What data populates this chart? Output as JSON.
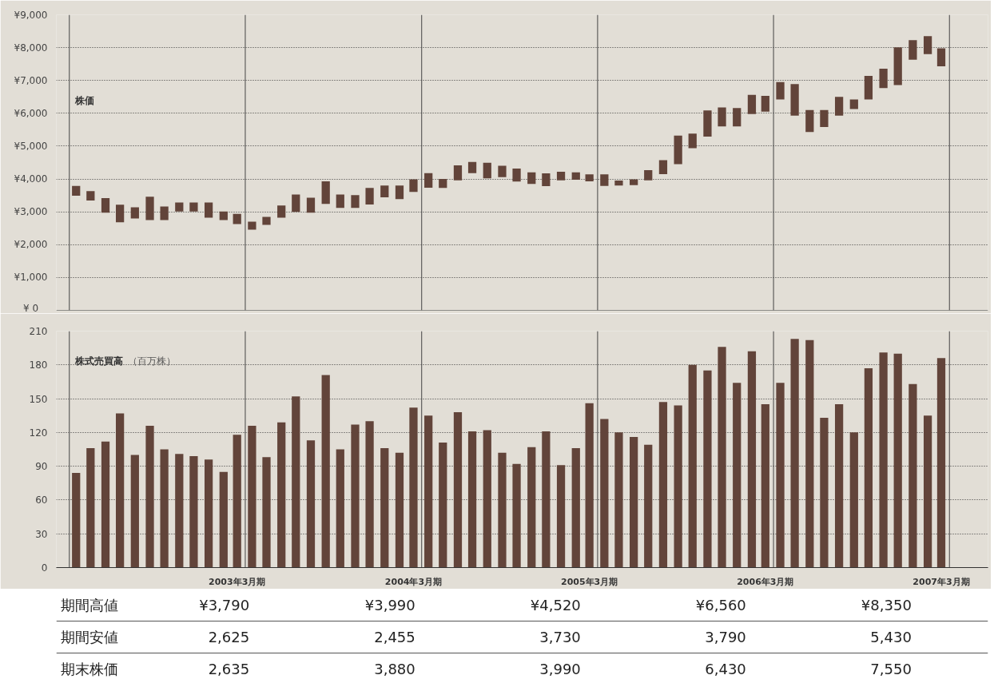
{
  "chart_data": [
    {
      "type": "bar",
      "title": "株価",
      "x": [
        "2002-04-15",
        "2002-05-15",
        "2002-06-15",
        "2002-07-15",
        "2002-08-15",
        "2002-09-15",
        "2002-10-15",
        "2002-11-15",
        "2002-12-15",
        "2003-01-15",
        "2003-02-15",
        "2003-03-15",
        "2003-04-15",
        "2003-05-15",
        "2003-06-15",
        "2003-07-15",
        "2003-08-15",
        "2003-09-15",
        "2003-10-15",
        "2003-11-15",
        "2003-12-15",
        "2004-01-15",
        "2004-02-15",
        "2004-03-15",
        "2004-04-15",
        "2004-05-15",
        "2004-06-15",
        "2004-07-15",
        "2004-08-15",
        "2004-09-15",
        "2004-10-15",
        "2004-11-15",
        "2004-12-15",
        "2005-01-15",
        "2005-02-15",
        "2005-03-15",
        "2005-04-15",
        "2005-05-15",
        "2005-06-15",
        "2005-07-15",
        "2005-08-15",
        "2005-09-15",
        "2005-10-15",
        "2005-11-15",
        "2005-12-15",
        "2006-01-15",
        "2006-02-15",
        "2006-03-15",
        "2006-04-15",
        "2006-05-15",
        "2006-06-15",
        "2006-07-15",
        "2006-08-15",
        "2006-09-15",
        "2006-10-15",
        "2006-11-15",
        "2006-12-15",
        "2007-01-15",
        "2007-02-15",
        "2007-03-15"
      ],
      "base": [
        3490,
        3345,
        2975,
        2680,
        2800,
        2750,
        2750,
        3010,
        3010,
        2820,
        2750,
        2625,
        2455,
        2605,
        2820,
        3000,
        2975,
        3240,
        3120,
        3120,
        3225,
        3440,
        3390,
        3605,
        3735,
        3730,
        3960,
        4175,
        4020,
        4055,
        3920,
        3850,
        3780,
        3960,
        3975,
        3930,
        3790,
        3800,
        3810,
        3960,
        4150,
        4450,
        4940,
        5290,
        5600,
        5600,
        5980,
        6050,
        6420,
        5930,
        5430,
        5580,
        5930,
        6130,
        6420,
        6770,
        6860,
        7630,
        7800,
        7430
      ],
      "values": [
        300,
        285,
        440,
        535,
        340,
        710,
        415,
        275,
        275,
        465,
        260,
        315,
        245,
        240,
        370,
        525,
        455,
        690,
        405,
        390,
        500,
        360,
        410,
        385,
        440,
        270,
        455,
        345,
        475,
        345,
        400,
        350,
        390,
        260,
        225,
        210,
        350,
        150,
        180,
        310,
        420,
        870,
        440,
        800,
        580,
        560,
        580,
        480,
        530,
        960,
        670,
        520,
        570,
        290,
        720,
        590,
        1150,
        600,
        550,
        550
      ],
      "color": "#62443a",
      "xlim": [
        "2002-03-05",
        "2007-06-20"
      ],
      "ylim": [
        0,
        9000
      ],
      "yticks": [
        {
          "value": 0,
          "label": "¥    0"
        },
        {
          "value": 1000,
          "label": "¥1,000"
        },
        {
          "value": 2000,
          "label": "¥2,000"
        },
        {
          "value": 3000,
          "label": "¥3,000"
        },
        {
          "value": 4000,
          "label": "¥4,000"
        },
        {
          "value": 5000,
          "label": "¥5,000"
        },
        {
          "value": 6000,
          "label": "¥6,000"
        },
        {
          "value": 7000,
          "label": "¥7,000"
        },
        {
          "value": 8000,
          "label": "¥8,000"
        },
        {
          "value": 9000,
          "label": "¥9,000"
        }
      ],
      "ref_lines": [
        {
          "axis": "x",
          "value": "2002-04-01"
        },
        {
          "axis": "x",
          "value": "2003-04-01"
        },
        {
          "axis": "x",
          "value": "2004-04-01"
        },
        {
          "axis": "x",
          "value": "2005-04-01"
        },
        {
          "axis": "x",
          "value": "2006-04-01"
        },
        {
          "axis": "x",
          "value": "2007-04-01"
        }
      ],
      "grid": "y",
      "tick_labels": "y"
    },
    {
      "type": "bar",
      "title": "株式売買高",
      "subtitle": "（百万株）",
      "x": [
        "2002-04-15",
        "2002-05-15",
        "2002-06-15",
        "2002-07-15",
        "2002-08-15",
        "2002-09-15",
        "2002-10-15",
        "2002-11-15",
        "2002-12-15",
        "2003-01-15",
        "2003-02-15",
        "2003-03-15",
        "2003-04-15",
        "2003-05-15",
        "2003-06-15",
        "2003-07-15",
        "2003-08-15",
        "2003-09-15",
        "2003-10-15",
        "2003-11-15",
        "2003-12-15",
        "2004-01-15",
        "2004-02-15",
        "2004-03-15",
        "2004-04-15",
        "2004-05-15",
        "2004-06-15",
        "2004-07-15",
        "2004-08-15",
        "2004-09-15",
        "2004-10-15",
        "2004-11-15",
        "2004-12-15",
        "2005-01-15",
        "2005-02-15",
        "2005-03-15",
        "2005-04-15",
        "2005-05-15",
        "2005-06-15",
        "2005-07-15",
        "2005-08-15",
        "2005-09-15",
        "2005-10-15",
        "2005-11-15",
        "2005-12-15",
        "2006-01-15",
        "2006-02-15",
        "2006-03-15",
        "2006-04-15",
        "2006-05-15",
        "2006-06-15",
        "2006-07-15",
        "2006-08-15",
        "2006-09-15",
        "2006-10-15",
        "2006-11-15",
        "2006-12-15",
        "2007-01-15",
        "2007-02-15",
        "2007-03-15"
      ],
      "values": [
        84,
        106,
        112,
        137,
        100,
        126,
        105,
        101,
        99,
        96,
        85,
        118,
        126,
        98,
        129,
        152,
        113,
        171,
        105,
        127,
        130,
        106,
        102,
        142,
        135,
        111,
        138,
        121,
        122,
        102,
        92,
        107,
        121,
        91,
        106,
        146,
        132,
        120,
        116,
        109,
        147,
        144,
        180,
        175,
        196,
        164,
        192,
        145,
        164,
        203,
        202,
        133,
        145,
        120,
        177,
        191,
        190,
        163,
        135,
        186
      ],
      "color": "#62443a",
      "xlim": [
        "2002-03-05",
        "2007-06-20"
      ],
      "xticks": [
        {
          "value": "2003-03-15",
          "label": "2003年3月期"
        },
        {
          "value": "2004-03-15",
          "label": "2004年3月期"
        },
        {
          "value": "2005-03-15",
          "label": "2005年3月期"
        },
        {
          "value": "2006-03-15",
          "label": "2006年3月期"
        },
        {
          "value": "2007-03-15",
          "label": "2007年3月期"
        }
      ],
      "ylim": [
        0,
        210
      ],
      "yticks": [
        0,
        30,
        60,
        90,
        120,
        150,
        180,
        210
      ],
      "ref_lines": [
        {
          "axis": "x",
          "value": "2002-04-01"
        },
        {
          "axis": "x",
          "value": "2003-04-01"
        },
        {
          "axis": "x",
          "value": "2004-04-01"
        },
        {
          "axis": "x",
          "value": "2005-04-01"
        },
        {
          "axis": "x",
          "value": "2006-04-01"
        },
        {
          "axis": "x",
          "value": "2007-04-01"
        }
      ],
      "grid": "y"
    },
    {
      "type": "other",
      "y_categories": [
        "期間高値",
        "期間安値",
        "期末株価"
      ],
      "cell_labels": [
        [
          "¥3,790",
          "¥3,990",
          "¥4,520",
          "¥6,560",
          "¥8,350"
        ],
        [
          "2,625",
          "2,455",
          "3,730",
          "3,790",
          "5,430"
        ],
        [
          "2,635",
          "3,880",
          "3,990",
          "6,430",
          "7,550"
        ]
      ]
    }
  ]
}
